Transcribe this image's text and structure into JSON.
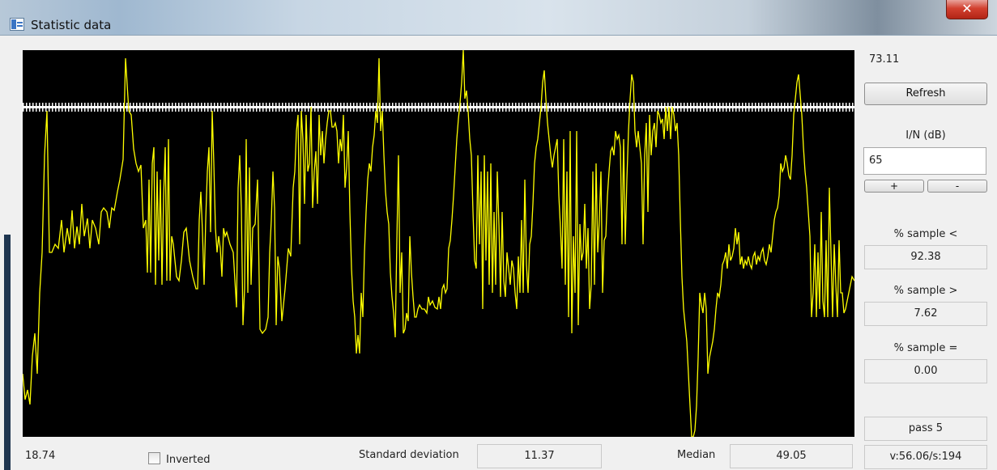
{
  "window": {
    "title": "Statistic data",
    "close_glyph": "✕"
  },
  "plot": {
    "y_max_label": "73.11",
    "y_min_label": "18.74",
    "line_color": "#ffff00",
    "threshold_color": "#ffffff"
  },
  "controls": {
    "refresh_label": "Refresh",
    "in_label": "I/N (dB)",
    "in_value": "65",
    "plus_label": "+",
    "minus_label": "-",
    "sample_less_label": "% sample <",
    "sample_less_value": "92.38",
    "sample_greater_label": "% sample >",
    "sample_greater_value": "7.62",
    "sample_equal_label": "% sample =",
    "sample_equal_value": "0.00",
    "pass_value": "pass 5",
    "status_value": "v:56.06/s:194"
  },
  "footer": {
    "inverted_label": "Inverted",
    "inverted_checked": false,
    "std_label": "Standard deviation",
    "std_value": "11.37",
    "median_label": "Median",
    "median_value": "49.05"
  }
}
